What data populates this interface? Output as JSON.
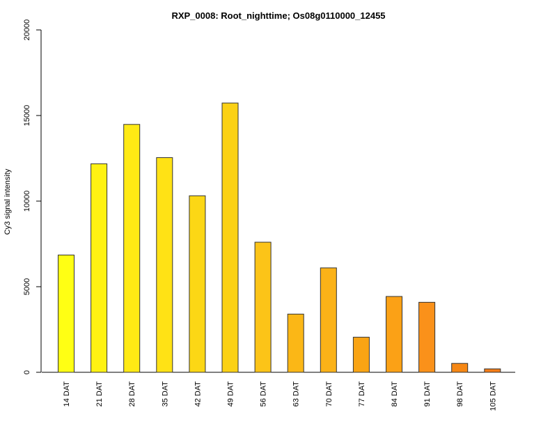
{
  "chart_data": {
    "type": "bar",
    "title": "RXP_0008: Root_nighttime; Os08g0110000_12455",
    "xlabel": "",
    "ylabel": "Cy3 signal intensity",
    "categories": [
      "14 DAT",
      "21 DAT",
      "28 DAT",
      "35 DAT",
      "42 DAT",
      "49 DAT",
      "56 DAT",
      "63 DAT",
      "70 DAT",
      "77 DAT",
      "84 DAT",
      "91 DAT",
      "98 DAT",
      "105 DAT"
    ],
    "values": [
      6850,
      12180,
      14480,
      12540,
      10310,
      15730,
      7600,
      3400,
      6100,
      2050,
      4430,
      4090,
      520,
      200
    ],
    "ylim": [
      0,
      20000
    ],
    "yticks": [
      0,
      5000,
      10000,
      15000,
      20000
    ],
    "colors": [
      "#ffff14",
      "#fff212",
      "#ffea14",
      "#ffe215",
      "#fcd715",
      "#fbd114",
      "#fcc418",
      "#fbb716",
      "#fbb218",
      "#f9a414",
      "#fba116",
      "#fa911a",
      "#f68714",
      "#f57c16"
    ],
    "grid": false,
    "legend": "none"
  }
}
